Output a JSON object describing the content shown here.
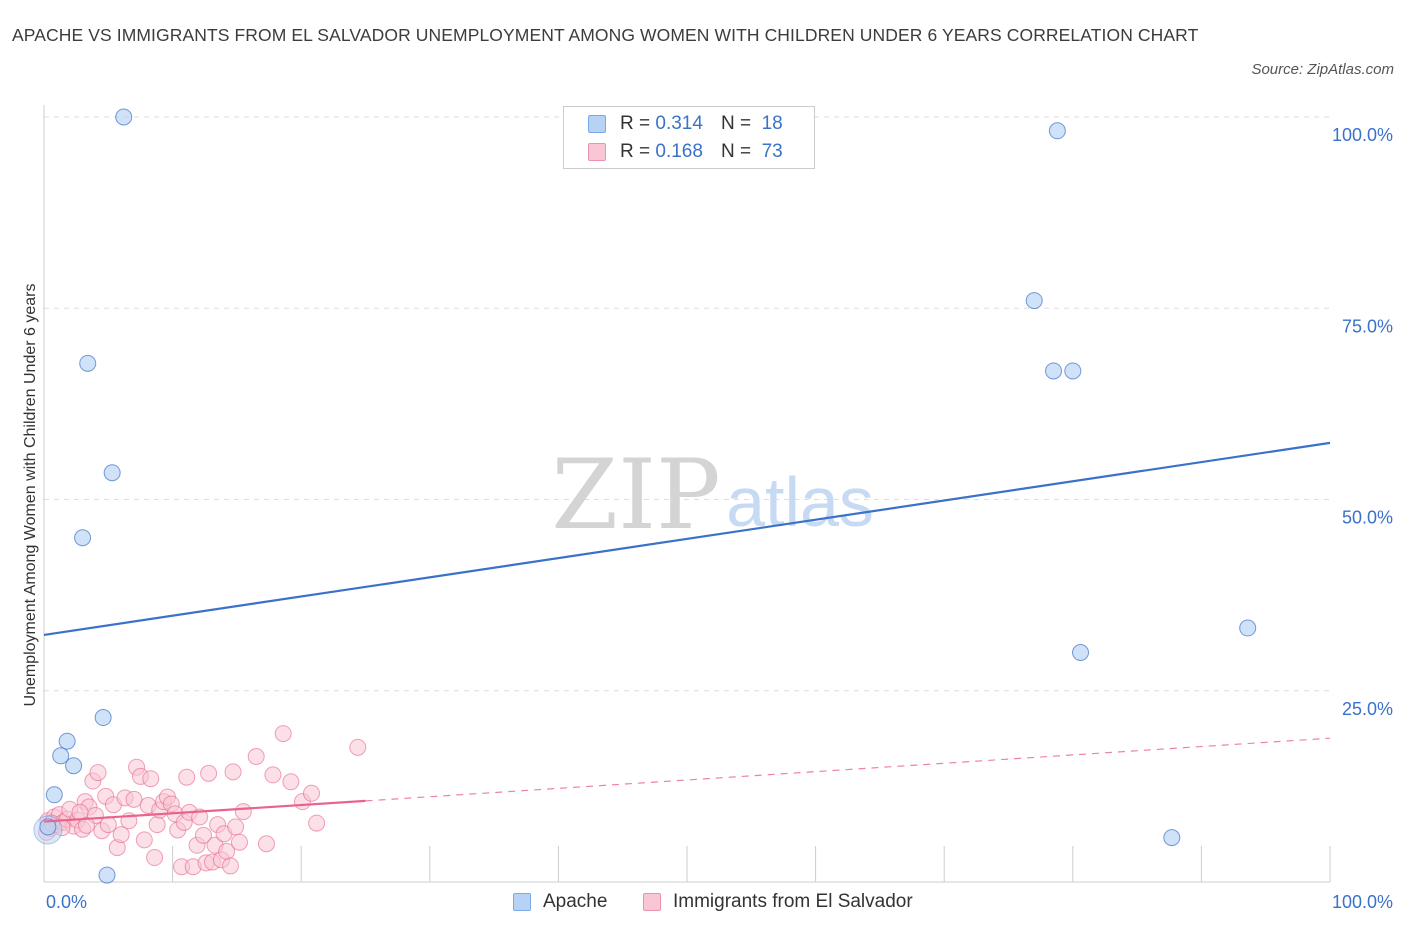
{
  "title": "APACHE VS IMMIGRANTS FROM EL SALVADOR UNEMPLOYMENT AMONG WOMEN WITH CHILDREN UNDER 6 YEARS CORRELATION CHART",
  "source": "Source: ZipAtlas.com",
  "watermark": {
    "zip": "ZIP",
    "atlas": "atlas"
  },
  "legend": {
    "apache": {
      "r_label": "R =",
      "r_value": "0.314",
      "n_label": "N =",
      "n_value": "18"
    },
    "elsalvador": {
      "r_label": "R =",
      "r_value": "0.168",
      "n_label": "N =",
      "n_value": "73"
    }
  },
  "colors": {
    "apache": "#3a72c9",
    "apache_fill": "#b6d2f5",
    "elsalvador": "#e8648c",
    "elsalvador_fill": "#f8c6d4",
    "grid": "#dddddd",
    "axis_text": "#3a72c9"
  },
  "chart_data": {
    "type": "scatter",
    "title": "APACHE VS IMMIGRANTS FROM EL SALVADOR UNEMPLOYMENT AMONG WOMEN WITH CHILDREN UNDER 6 YEARS CORRELATION CHART",
    "xlabel": "",
    "ylabel": "Unemployment Among Women with Children Under 6 years",
    "xlim": [
      0,
      100
    ],
    "ylim": [
      0,
      100
    ],
    "x_tick_labels": [
      "0.0%",
      "100.0%"
    ],
    "y_ticks": [
      25,
      50,
      75,
      100
    ],
    "y_tick_labels": [
      "25.0%",
      "50.0%",
      "75.0%",
      "100.0%"
    ],
    "grid": true,
    "series": [
      {
        "name": "Apache",
        "r": 0.314,
        "n": 18,
        "points": [
          [
            6.2,
            100.0
          ],
          [
            78.8,
            98.2
          ],
          [
            3.4,
            67.8
          ],
          [
            5.3,
            53.5
          ],
          [
            3.0,
            45.0
          ],
          [
            77.0,
            76.0
          ],
          [
            78.5,
            66.8
          ],
          [
            80.0,
            66.8
          ],
          [
            80.6,
            30.0
          ],
          [
            93.6,
            33.2
          ],
          [
            4.6,
            21.5
          ],
          [
            1.8,
            18.4
          ],
          [
            1.3,
            16.5
          ],
          [
            2.3,
            15.2
          ],
          [
            0.8,
            11.4
          ],
          [
            87.7,
            5.8
          ],
          [
            4.9,
            0.9
          ],
          [
            0.3,
            7.2
          ]
        ],
        "trend": {
          "x": [
            0,
            100
          ],
          "y": [
            32.3,
            57.4
          ],
          "style": "solid"
        }
      },
      {
        "name": "Immigrants from El Salvador",
        "r": 0.168,
        "n": 73,
        "points": [
          [
            0.3,
            8.0
          ],
          [
            0.5,
            7.0
          ],
          [
            0.8,
            8.5
          ],
          [
            1.0,
            7.5
          ],
          [
            1.2,
            8.8
          ],
          [
            1.5,
            7.8
          ],
          [
            1.8,
            8.2
          ],
          [
            2.0,
            9.5
          ],
          [
            2.3,
            7.3
          ],
          [
            2.6,
            8.1
          ],
          [
            3.0,
            6.9
          ],
          [
            3.2,
            10.5
          ],
          [
            3.5,
            9.8
          ],
          [
            3.8,
            13.2
          ],
          [
            4.0,
            8.7
          ],
          [
            4.2,
            14.3
          ],
          [
            4.5,
            6.7
          ],
          [
            4.8,
            11.2
          ],
          [
            5.0,
            7.5
          ],
          [
            5.4,
            10.1
          ],
          [
            5.7,
            4.5
          ],
          [
            6.0,
            6.2
          ],
          [
            6.3,
            11.0
          ],
          [
            6.6,
            8.0
          ],
          [
            7.0,
            10.8
          ],
          [
            7.2,
            15.0
          ],
          [
            7.5,
            13.8
          ],
          [
            7.8,
            5.5
          ],
          [
            8.1,
            10.0
          ],
          [
            8.3,
            13.5
          ],
          [
            8.6,
            3.2
          ],
          [
            8.8,
            7.5
          ],
          [
            9.0,
            9.4
          ],
          [
            9.3,
            10.5
          ],
          [
            9.6,
            11.1
          ],
          [
            9.9,
            10.2
          ],
          [
            10.2,
            8.9
          ],
          [
            10.4,
            6.8
          ],
          [
            10.7,
            2.0
          ],
          [
            10.9,
            7.8
          ],
          [
            11.1,
            13.7
          ],
          [
            11.3,
            9.1
          ],
          [
            11.6,
            2.0
          ],
          [
            11.9,
            4.8
          ],
          [
            12.1,
            8.5
          ],
          [
            12.4,
            6.1
          ],
          [
            12.6,
            2.5
          ],
          [
            12.8,
            14.2
          ],
          [
            13.1,
            2.6
          ],
          [
            13.3,
            4.8
          ],
          [
            13.5,
            7.5
          ],
          [
            13.8,
            2.9
          ],
          [
            14.0,
            6.3
          ],
          [
            14.2,
            4.0
          ],
          [
            14.5,
            2.1
          ],
          [
            14.7,
            14.4
          ],
          [
            14.9,
            7.2
          ],
          [
            15.2,
            5.2
          ],
          [
            15.5,
            9.2
          ],
          [
            16.5,
            16.4
          ],
          [
            17.3,
            5.0
          ],
          [
            17.8,
            14.0
          ],
          [
            18.6,
            19.4
          ],
          [
            19.2,
            13.1
          ],
          [
            20.1,
            10.5
          ],
          [
            20.8,
            11.6
          ],
          [
            21.2,
            7.7
          ],
          [
            24.4,
            17.6
          ],
          [
            0.2,
            6.5
          ],
          [
            0.6,
            7.7
          ],
          [
            1.4,
            7.1
          ],
          [
            2.8,
            9.1
          ],
          [
            3.3,
            7.4
          ]
        ],
        "trend": {
          "x": [
            0,
            25
          ],
          "y": [
            7.9,
            10.6
          ],
          "style": "solid",
          "extension": {
            "x": [
              25,
              100
            ],
            "y": [
              10.6,
              18.8
            ],
            "style": "dashed"
          }
        }
      }
    ]
  },
  "bottom_legend": {
    "apache": "Apache",
    "elsalvador": "Immigrants from El Salvador"
  }
}
